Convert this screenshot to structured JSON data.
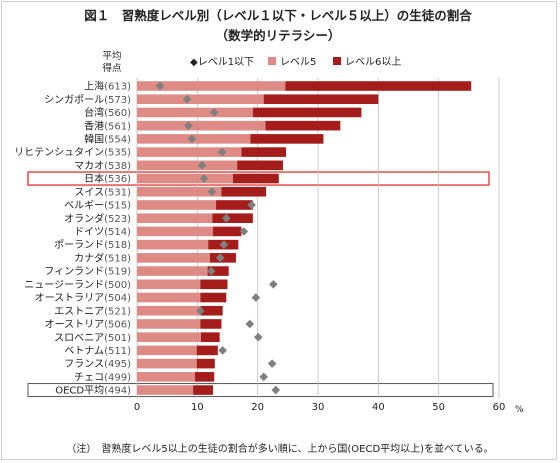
{
  "title": "図１　習熟度レベル別（レベル１以下・レベル５以上）の生徒の割合",
  "subtitle": "（数学的リテラシー）",
  "row_header_line1": "平均",
  "row_header_line2": "得点",
  "note": "（注）　習熟度レベル5以上の生徒の割合が多い順に、上から国(OECD平均以上)を並べている。",
  "colors": {
    "level5": "#de8b86",
    "level6": "#a51d1b",
    "level1": "#7f7f7f",
    "highlight": "#e0201a",
    "oecd_box": "#555555"
  },
  "highlighted_rows": [
    "日本"
  ],
  "boxed_rows": [
    "OECD平均"
  ],
  "chart_data": {
    "type": "bar",
    "stacked": true,
    "orientation": "horizontal",
    "xlim": [
      0,
      60
    ],
    "xticks": [
      0,
      10,
      20,
      30,
      40,
      50,
      60
    ],
    "x_unit": "%",
    "legend_position": "top",
    "legend": [
      {
        "label": "◆レベル1以下",
        "marker": "diamond"
      },
      {
        "label": "レベル5",
        "marker": "bar"
      },
      {
        "label": "レベル6以上",
        "marker": "bar"
      }
    ],
    "rows": [
      {
        "name": "上海",
        "score": "(613)",
        "level5": 24.6,
        "level6": 30.8,
        "level1": 3.8
      },
      {
        "name": "シンガポール",
        "score": "(573)",
        "level5": 21.0,
        "level6": 19.0,
        "level1": 8.3
      },
      {
        "name": "台湾",
        "score": "(560)",
        "level5": 19.2,
        "level6": 18.0,
        "level1": 12.8
      },
      {
        "name": "香港",
        "score": "(561)",
        "level5": 21.3,
        "level6": 12.4,
        "level1": 8.5
      },
      {
        "name": "韓国",
        "score": "(554)",
        "level5": 18.8,
        "level6": 12.1,
        "level1": 9.1
      },
      {
        "name": "リヒテンシュタイン",
        "score": "(535)",
        "level5": 17.3,
        "level6": 7.4,
        "level1": 14.1
      },
      {
        "name": "マカオ",
        "score": "(538)",
        "level5": 16.6,
        "level6": 7.6,
        "level1": 10.8
      },
      {
        "name": "日本",
        "score": "(536)",
        "level5": 15.9,
        "level6": 7.6,
        "level1": 11.1
      },
      {
        "name": "スイス",
        "score": "(531)",
        "level5": 14.0,
        "level6": 7.4,
        "level1": 12.4
      },
      {
        "name": "ベルギー",
        "score": "(515)",
        "level5": 13.1,
        "level6": 6.1,
        "level1": 19.0
      },
      {
        "name": "オランダ",
        "score": "(523)",
        "level5": 12.5,
        "level6": 6.7,
        "level1": 14.8
      },
      {
        "name": "ドイツ",
        "score": "(514)",
        "level5": 12.6,
        "level6": 4.7,
        "level1": 17.7
      },
      {
        "name": "ポーランド",
        "score": "(518)",
        "level5": 11.8,
        "level6": 5.0,
        "level1": 14.4
      },
      {
        "name": "カナダ",
        "score": "(518)",
        "level5": 12.1,
        "level6": 4.3,
        "level1": 13.8
      },
      {
        "name": "フィンランド",
        "score": "(519)",
        "level5": 11.7,
        "level6": 3.5,
        "level1": 12.3
      },
      {
        "name": "ニュージーランド",
        "score": "(500)",
        "level5": 10.5,
        "level6": 4.5,
        "level1": 22.6
      },
      {
        "name": "オーストラリア",
        "score": "(504)",
        "level5": 10.5,
        "level6": 4.3,
        "level1": 19.7
      },
      {
        "name": "エストニア",
        "score": "(521)",
        "level5": 10.6,
        "level6": 3.6,
        "level1": 10.5
      },
      {
        "name": "オーストリア",
        "score": "(506)",
        "level5": 10.5,
        "level6": 3.5,
        "level1": 18.7
      },
      {
        "name": "スロベニア",
        "score": "(501)",
        "level5": 10.6,
        "level6": 3.1,
        "level1": 20.1
      },
      {
        "name": "ベトナム",
        "score": "(511)",
        "level5": 9.9,
        "level6": 3.5,
        "level1": 14.2
      },
      {
        "name": "フランス",
        "score": "(495)",
        "level5": 9.9,
        "level6": 3.0,
        "level1": 22.4
      },
      {
        "name": "チェコ",
        "score": "(499)",
        "level5": 9.6,
        "level6": 3.2,
        "level1": 21.0
      },
      {
        "name": "OECD平均",
        "score": "(494)",
        "level5": 9.3,
        "level6": 3.3,
        "level1": 23.0
      }
    ]
  }
}
